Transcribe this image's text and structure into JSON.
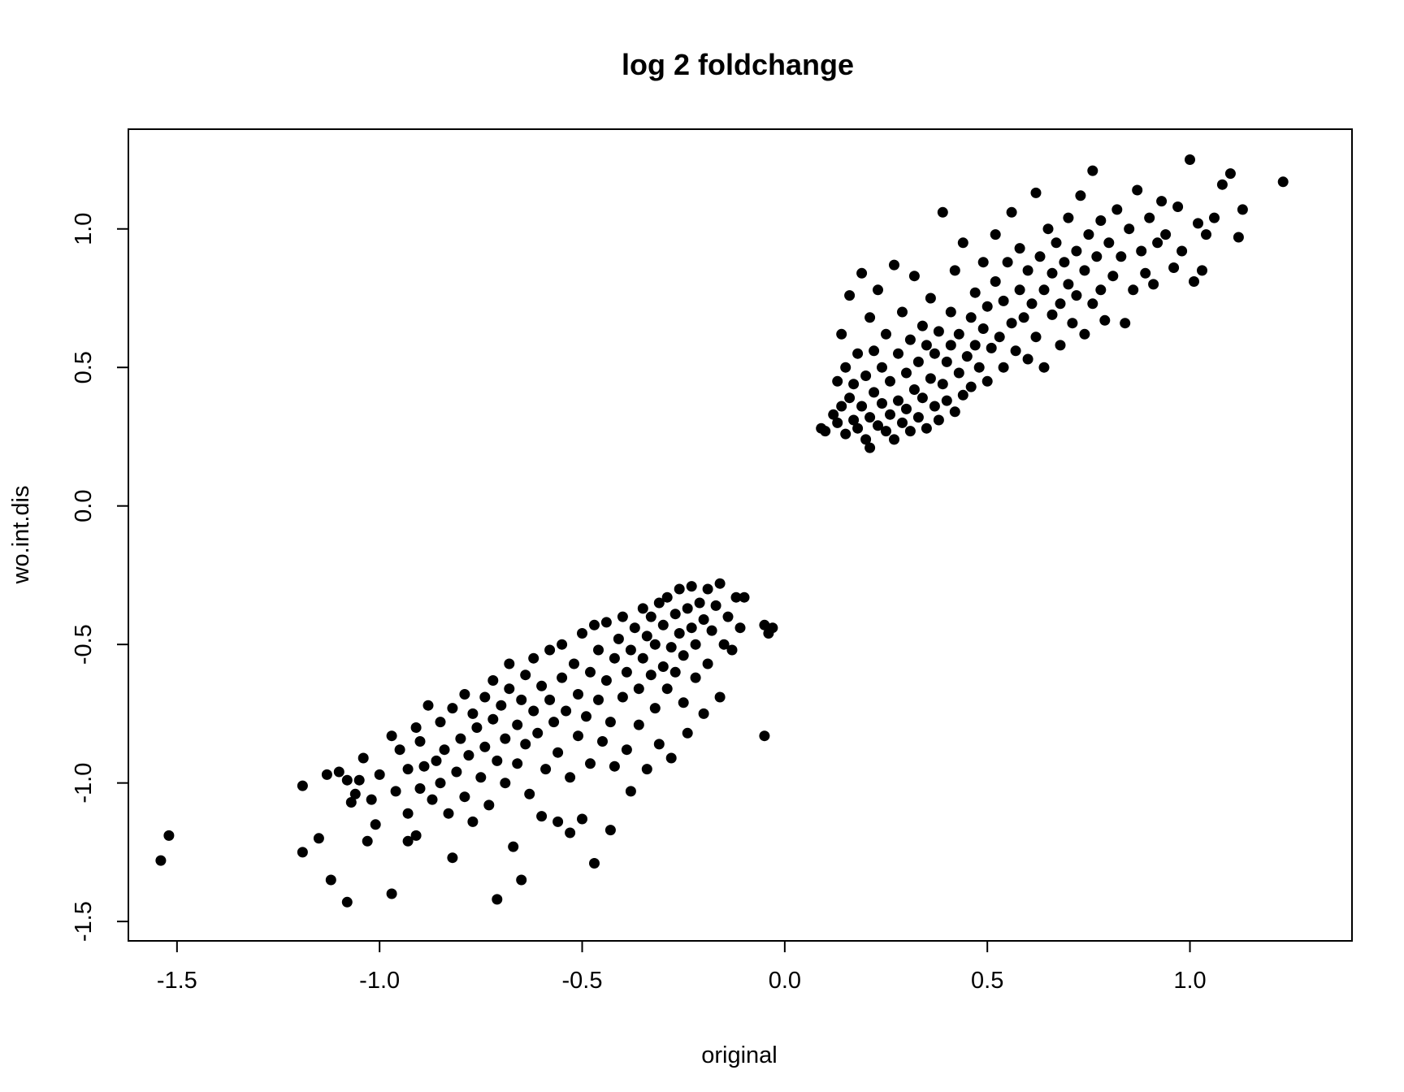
{
  "chart_data": {
    "type": "scatter",
    "title": "log 2 foldchange",
    "xlabel": "original",
    "ylabel": "wo.int.dis",
    "xlim": [
      -1.62,
      1.4
    ],
    "ylim": [
      -1.57,
      1.36
    ],
    "xticks": [
      -1.5,
      -1.0,
      -0.5,
      0.0,
      0.5,
      1.0
    ],
    "xtick_labels": [
      "-1.5",
      "-1.0",
      "-0.5",
      "0.0",
      "0.5",
      "1.0"
    ],
    "yticks": [
      -1.5,
      -1.0,
      -0.5,
      0.0,
      0.5,
      1.0
    ],
    "ytick_labels": [
      "-1.5",
      "-1.0",
      "-0.5",
      "0.0",
      "0.5",
      "1.0"
    ],
    "grid": false,
    "legend": "none",
    "marker_color": "#000000",
    "series": [
      {
        "values": [
          [
            -1.54,
            -1.28
          ],
          [
            -1.52,
            -1.19
          ],
          [
            -1.19,
            -1.01
          ],
          [
            -1.19,
            -1.25
          ],
          [
            -1.15,
            -1.2
          ],
          [
            -1.13,
            -0.97
          ],
          [
            -1.12,
            -1.35
          ],
          [
            -1.1,
            -0.96
          ],
          [
            -1.08,
            -0.99
          ],
          [
            -1.08,
            -1.43
          ],
          [
            -1.07,
            -1.07
          ],
          [
            -1.06,
            -1.04
          ],
          [
            -1.05,
            -0.99
          ],
          [
            -1.04,
            -0.91
          ],
          [
            -1.03,
            -1.21
          ],
          [
            -1.02,
            -1.06
          ],
          [
            -1.01,
            -1.15
          ],
          [
            -1.0,
            -0.97
          ],
          [
            -0.97,
            -0.83
          ],
          [
            -0.97,
            -1.4
          ],
          [
            -0.96,
            -1.03
          ],
          [
            -0.95,
            -0.88
          ],
          [
            -0.93,
            -1.21
          ],
          [
            -0.93,
            -1.11
          ],
          [
            -0.93,
            -0.95
          ],
          [
            -0.91,
            -0.8
          ],
          [
            -0.91,
            -1.19
          ],
          [
            -0.9,
            -1.02
          ],
          [
            -0.9,
            -0.85
          ],
          [
            -0.89,
            -0.94
          ],
          [
            -0.88,
            -0.72
          ],
          [
            -0.87,
            -1.06
          ],
          [
            -0.86,
            -0.92
          ],
          [
            -0.85,
            -0.78
          ],
          [
            -0.85,
            -1.0
          ],
          [
            -0.84,
            -0.88
          ],
          [
            -0.83,
            -1.11
          ],
          [
            -0.82,
            -0.73
          ],
          [
            -0.82,
            -1.27
          ],
          [
            -0.81,
            -0.96
          ],
          [
            -0.8,
            -0.84
          ],
          [
            -0.79,
            -0.68
          ],
          [
            -0.79,
            -1.05
          ],
          [
            -0.78,
            -0.9
          ],
          [
            -0.77,
            -0.75
          ],
          [
            -0.77,
            -1.14
          ],
          [
            -0.76,
            -0.8
          ],
          [
            -0.75,
            -0.98
          ],
          [
            -0.74,
            -0.69
          ],
          [
            -0.74,
            -0.87
          ],
          [
            -0.73,
            -1.08
          ],
          [
            -0.72,
            -0.77
          ],
          [
            -0.72,
            -0.63
          ],
          [
            -0.71,
            -1.42
          ],
          [
            -0.71,
            -0.92
          ],
          [
            -0.7,
            -0.72
          ],
          [
            -0.69,
            -0.84
          ],
          [
            -0.69,
            -1.0
          ],
          [
            -0.68,
            -0.66
          ],
          [
            -0.68,
            -0.57
          ],
          [
            -0.67,
            -1.23
          ],
          [
            -0.66,
            -0.79
          ],
          [
            -0.66,
            -0.93
          ],
          [
            -0.65,
            -0.7
          ],
          [
            -0.65,
            -1.35
          ],
          [
            -0.64,
            -0.61
          ],
          [
            -0.64,
            -0.86
          ],
          [
            -0.63,
            -1.04
          ],
          [
            -0.62,
            -0.74
          ],
          [
            -0.62,
            -0.55
          ],
          [
            -0.61,
            -0.82
          ],
          [
            -0.6,
            -0.65
          ],
          [
            -0.6,
            -1.12
          ],
          [
            -0.59,
            -0.95
          ],
          [
            -0.58,
            -0.7
          ],
          [
            -0.58,
            -0.52
          ],
          [
            -0.57,
            -0.78
          ],
          [
            -0.56,
            -1.14
          ],
          [
            -0.56,
            -0.89
          ],
          [
            -0.55,
            -0.62
          ],
          [
            -0.55,
            -0.5
          ],
          [
            -0.54,
            -0.74
          ],
          [
            -0.53,
            -0.98
          ],
          [
            -0.53,
            -1.18
          ],
          [
            -0.52,
            -0.57
          ],
          [
            -0.51,
            -0.83
          ],
          [
            -0.51,
            -0.68
          ],
          [
            -0.5,
            -0.46
          ],
          [
            -0.5,
            -1.13
          ],
          [
            -0.49,
            -0.76
          ],
          [
            -0.48,
            -0.93
          ],
          [
            -0.48,
            -0.6
          ],
          [
            -0.47,
            -0.43
          ],
          [
            -0.47,
            -1.29
          ],
          [
            -0.46,
            -0.7
          ],
          [
            -0.46,
            -0.52
          ],
          [
            -0.45,
            -0.85
          ],
          [
            -0.44,
            -0.63
          ],
          [
            -0.44,
            -0.42
          ],
          [
            -0.43,
            -1.17
          ],
          [
            -0.43,
            -0.78
          ],
          [
            -0.42,
            -0.55
          ],
          [
            -0.42,
            -0.94
          ],
          [
            -0.41,
            -0.48
          ],
          [
            -0.4,
            -0.69
          ],
          [
            -0.4,
            -0.4
          ],
          [
            -0.39,
            -0.6
          ],
          [
            -0.39,
            -0.88
          ],
          [
            -0.38,
            -0.52
          ],
          [
            -0.38,
            -1.03
          ],
          [
            -0.37,
            -0.44
          ],
          [
            -0.36,
            -0.66
          ],
          [
            -0.36,
            -0.79
          ],
          [
            -0.35,
            -0.37
          ],
          [
            -0.35,
            -0.55
          ],
          [
            -0.34,
            -0.47
          ],
          [
            -0.34,
            -0.95
          ],
          [
            -0.33,
            -0.61
          ],
          [
            -0.33,
            -0.4
          ],
          [
            -0.32,
            -0.73
          ],
          [
            -0.32,
            -0.5
          ],
          [
            -0.31,
            -0.35
          ],
          [
            -0.31,
            -0.86
          ],
          [
            -0.3,
            -0.58
          ],
          [
            -0.3,
            -0.43
          ],
          [
            -0.29,
            -0.66
          ],
          [
            -0.29,
            -0.33
          ],
          [
            -0.28,
            -0.51
          ],
          [
            -0.28,
            -0.91
          ],
          [
            -0.27,
            -0.39
          ],
          [
            -0.27,
            -0.6
          ],
          [
            -0.26,
            -0.46
          ],
          [
            -0.26,
            -0.3
          ],
          [
            -0.25,
            -0.71
          ],
          [
            -0.25,
            -0.54
          ],
          [
            -0.24,
            -0.37
          ],
          [
            -0.24,
            -0.82
          ],
          [
            -0.23,
            -0.44
          ],
          [
            -0.23,
            -0.29
          ],
          [
            -0.22,
            -0.62
          ],
          [
            -0.22,
            -0.5
          ],
          [
            -0.21,
            -0.35
          ],
          [
            -0.2,
            -0.75
          ],
          [
            -0.2,
            -0.41
          ],
          [
            -0.19,
            -0.3
          ],
          [
            -0.19,
            -0.57
          ],
          [
            -0.18,
            -0.45
          ],
          [
            -0.17,
            -0.36
          ],
          [
            -0.16,
            -0.69
          ],
          [
            -0.16,
            -0.28
          ],
          [
            -0.15,
            -0.5
          ],
          [
            -0.14,
            -0.4
          ],
          [
            -0.13,
            -0.52
          ],
          [
            -0.12,
            -0.33
          ],
          [
            -0.11,
            -0.44
          ],
          [
            -0.1,
            -0.33
          ],
          [
            -0.05,
            -0.83
          ],
          [
            -0.05,
            -0.43
          ],
          [
            -0.04,
            -0.46
          ],
          [
            -0.03,
            -0.44
          ],
          [
            0.09,
            0.28
          ],
          [
            0.1,
            0.27
          ],
          [
            0.12,
            0.33
          ],
          [
            0.13,
            0.3
          ],
          [
            0.13,
            0.45
          ],
          [
            0.14,
            0.36
          ],
          [
            0.14,
            0.62
          ],
          [
            0.15,
            0.26
          ],
          [
            0.15,
            0.5
          ],
          [
            0.16,
            0.39
          ],
          [
            0.16,
            0.76
          ],
          [
            0.17,
            0.31
          ],
          [
            0.17,
            0.44
          ],
          [
            0.18,
            0.28
          ],
          [
            0.18,
            0.55
          ],
          [
            0.19,
            0.36
          ],
          [
            0.19,
            0.84
          ],
          [
            0.2,
            0.24
          ],
          [
            0.2,
            0.47
          ],
          [
            0.21,
            0.32
          ],
          [
            0.21,
            0.68
          ],
          [
            0.21,
            0.21
          ],
          [
            0.22,
            0.41
          ],
          [
            0.22,
            0.56
          ],
          [
            0.23,
            0.29
          ],
          [
            0.23,
            0.78
          ],
          [
            0.24,
            0.37
          ],
          [
            0.24,
            0.5
          ],
          [
            0.25,
            0.27
          ],
          [
            0.25,
            0.62
          ],
          [
            0.26,
            0.33
          ],
          [
            0.26,
            0.45
          ],
          [
            0.27,
            0.87
          ],
          [
            0.27,
            0.24
          ],
          [
            0.28,
            0.55
          ],
          [
            0.28,
            0.38
          ],
          [
            0.29,
            0.3
          ],
          [
            0.29,
            0.7
          ],
          [
            0.3,
            0.48
          ],
          [
            0.3,
            0.35
          ],
          [
            0.31,
            0.6
          ],
          [
            0.31,
            0.27
          ],
          [
            0.32,
            0.42
          ],
          [
            0.32,
            0.83
          ],
          [
            0.33,
            0.52
          ],
          [
            0.33,
            0.32
          ],
          [
            0.34,
            0.65
          ],
          [
            0.34,
            0.39
          ],
          [
            0.35,
            0.28
          ],
          [
            0.35,
            0.58
          ],
          [
            0.36,
            0.46
          ],
          [
            0.36,
            0.75
          ],
          [
            0.37,
            0.36
          ],
          [
            0.37,
            0.55
          ],
          [
            0.38,
            0.31
          ],
          [
            0.38,
            0.63
          ],
          [
            0.39,
            0.44
          ],
          [
            0.39,
            1.06
          ],
          [
            0.4,
            0.52
          ],
          [
            0.4,
            0.38
          ],
          [
            0.41,
            0.7
          ],
          [
            0.41,
            0.58
          ],
          [
            0.42,
            0.34
          ],
          [
            0.42,
            0.85
          ],
          [
            0.43,
            0.48
          ],
          [
            0.43,
            0.62
          ],
          [
            0.44,
            0.4
          ],
          [
            0.44,
            0.95
          ],
          [
            0.45,
            0.54
          ],
          [
            0.46,
            0.68
          ],
          [
            0.46,
            0.43
          ],
          [
            0.47,
            0.77
          ],
          [
            0.47,
            0.58
          ],
          [
            0.48,
            0.5
          ],
          [
            0.49,
            0.88
          ],
          [
            0.49,
            0.64
          ],
          [
            0.5,
            0.45
          ],
          [
            0.5,
            0.72
          ],
          [
            0.51,
            0.57
          ],
          [
            0.52,
            0.98
          ],
          [
            0.52,
            0.81
          ],
          [
            0.53,
            0.61
          ],
          [
            0.54,
            0.5
          ],
          [
            0.54,
            0.74
          ],
          [
            0.55,
            0.88
          ],
          [
            0.56,
            0.66
          ],
          [
            0.56,
            1.06
          ],
          [
            0.57,
            0.56
          ],
          [
            0.58,
            0.78
          ],
          [
            0.58,
            0.93
          ],
          [
            0.59,
            0.68
          ],
          [
            0.6,
            0.53
          ],
          [
            0.6,
            0.85
          ],
          [
            0.61,
            0.73
          ],
          [
            0.62,
            1.13
          ],
          [
            0.62,
            0.61
          ],
          [
            0.63,
            0.9
          ],
          [
            0.64,
            0.78
          ],
          [
            0.64,
            0.5
          ],
          [
            0.65,
            1.0
          ],
          [
            0.66,
            0.69
          ],
          [
            0.66,
            0.84
          ],
          [
            0.67,
            0.95
          ],
          [
            0.68,
            0.73
          ],
          [
            0.68,
            0.58
          ],
          [
            0.69,
            0.88
          ],
          [
            0.7,
            0.8
          ],
          [
            0.7,
            1.04
          ],
          [
            0.71,
            0.66
          ],
          [
            0.72,
            0.92
          ],
          [
            0.72,
            0.76
          ],
          [
            0.73,
            1.12
          ],
          [
            0.74,
            0.85
          ],
          [
            0.74,
            0.62
          ],
          [
            0.75,
            0.98
          ],
          [
            0.76,
            0.73
          ],
          [
            0.76,
            1.21
          ],
          [
            0.77,
            0.9
          ],
          [
            0.78,
            1.03
          ],
          [
            0.78,
            0.78
          ],
          [
            0.79,
            0.67
          ],
          [
            0.8,
            0.95
          ],
          [
            0.81,
            0.83
          ],
          [
            0.82,
            1.07
          ],
          [
            0.83,
            0.9
          ],
          [
            0.84,
            0.66
          ],
          [
            0.85,
            1.0
          ],
          [
            0.86,
            0.78
          ],
          [
            0.87,
            1.14
          ],
          [
            0.88,
            0.92
          ],
          [
            0.89,
            0.84
          ],
          [
            0.9,
            1.04
          ],
          [
            0.91,
            0.8
          ],
          [
            0.92,
            0.95
          ],
          [
            0.93,
            1.1
          ],
          [
            0.94,
            0.98
          ],
          [
            0.96,
            0.86
          ],
          [
            0.97,
            1.08
          ],
          [
            0.98,
            0.92
          ],
          [
            1.0,
            1.25
          ],
          [
            1.01,
            0.81
          ],
          [
            1.02,
            1.02
          ],
          [
            1.03,
            0.85
          ],
          [
            1.04,
            0.98
          ],
          [
            1.06,
            1.04
          ],
          [
            1.08,
            1.16
          ],
          [
            1.1,
            1.2
          ],
          [
            1.12,
            0.97
          ],
          [
            1.13,
            1.07
          ],
          [
            1.23,
            1.17
          ]
        ]
      }
    ]
  }
}
